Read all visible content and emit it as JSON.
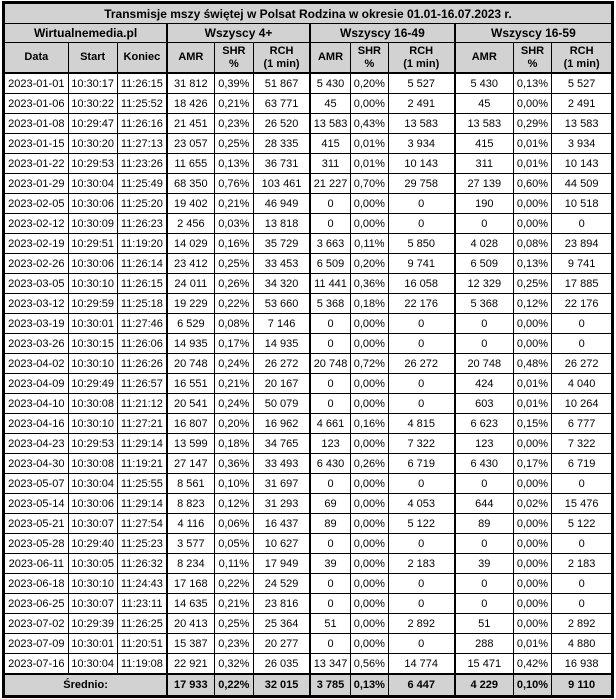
{
  "page": {
    "background": "#ffffff",
    "border_color": "#000000",
    "header_bg": "#d2d2d2"
  },
  "table": {
    "title": "Transmisje mszy świętej w Polsat Rodzina w okresie 01.01-16.07.2023 r.",
    "source": "Wirtualnemedia.pl",
    "groups": [
      "Wszyscy 4+",
      "Wszyscy 16-49",
      "Wszyscy 16-59"
    ],
    "base_columns": [
      "Data",
      "Start",
      "Koniec"
    ],
    "sub_columns": [
      "AMR",
      "SHR %",
      "RCH\n(1 min)"
    ]
  },
  "chart_data": {
    "type": "table",
    "title": "Transmisje mszy świętej w Polsat Rodzina w okresie 01.01-16.07.2023 r.",
    "columns": [
      "Data",
      "Start",
      "Koniec",
      "Wszyscy 4+ AMR",
      "Wszyscy 4+ SHR %",
      "Wszyscy 4+ RCH (1 min)",
      "Wszyscy 16-49 AMR",
      "Wszyscy 16-49 SHR %",
      "Wszyscy 16-49 RCH (1 min)",
      "Wszyscy 16-59 AMR",
      "Wszyscy 16-59 SHR %",
      "Wszyscy 16-59 RCH (1 min)"
    ],
    "rows": [
      [
        "2023-01-01",
        "10:30:17",
        "11:26:15",
        "31 812",
        "0,39%",
        "51 867",
        "5 430",
        "0,20%",
        "5 527",
        "5 430",
        "0,13%",
        "5 527"
      ],
      [
        "2023-01-06",
        "10:30:22",
        "11:25:52",
        "18 426",
        "0,21%",
        "63 771",
        "45",
        "0,00%",
        "2 491",
        "45",
        "0,00%",
        "2 491"
      ],
      [
        "2023-01-08",
        "10:29:47",
        "11:26:16",
        "21 451",
        "0,23%",
        "26 520",
        "13 583",
        "0,43%",
        "13 583",
        "13 583",
        "0,29%",
        "13 583"
      ],
      [
        "2023-01-15",
        "10:30:20",
        "11:27:13",
        "23 057",
        "0,25%",
        "28 335",
        "415",
        "0,01%",
        "3 934",
        "415",
        "0,01%",
        "3 934"
      ],
      [
        "2023-01-22",
        "10:29:53",
        "11:23:26",
        "11 655",
        "0,13%",
        "36 731",
        "311",
        "0,01%",
        "10 143",
        "311",
        "0,01%",
        "10 143"
      ],
      [
        "2023-01-29",
        "10:30:04",
        "11:25:49",
        "68 350",
        "0,76%",
        "103 461",
        "21 227",
        "0,70%",
        "29 758",
        "27 139",
        "0,60%",
        "44 509"
      ],
      [
        "2023-02-05",
        "10:30:06",
        "11:25:20",
        "19 402",
        "0,21%",
        "46 949",
        "0",
        "0,00%",
        "0",
        "190",
        "0,00%",
        "10 518"
      ],
      [
        "2023-02-12",
        "10:30:09",
        "11:26:23",
        "2 456",
        "0,03%",
        "13 818",
        "0",
        "0,00%",
        "0",
        "0",
        "0,00%",
        "0"
      ],
      [
        "2023-02-19",
        "10:29:51",
        "11:19:20",
        "14 029",
        "0,16%",
        "35 729",
        "3 663",
        "0,11%",
        "5 850",
        "4 028",
        "0,08%",
        "23 894"
      ],
      [
        "2023-02-26",
        "10:30:06",
        "11:26:14",
        "23 412",
        "0,25%",
        "33 453",
        "6 509",
        "0,20%",
        "9 741",
        "6 509",
        "0,13%",
        "9 741"
      ],
      [
        "2023-03-05",
        "10:30:10",
        "11:26:15",
        "24 011",
        "0,26%",
        "34 320",
        "11 441",
        "0,36%",
        "16 058",
        "12 329",
        "0,25%",
        "17 885"
      ],
      [
        "2023-03-12",
        "10:29:59",
        "11:25:18",
        "19 229",
        "0,22%",
        "53 660",
        "5 368",
        "0,18%",
        "22 176",
        "5 368",
        "0,12%",
        "22 176"
      ],
      [
        "2023-03-19",
        "10:30:01",
        "11:27:46",
        "6 529",
        "0,08%",
        "7 146",
        "0",
        "0,00%",
        "0",
        "0",
        "0,00%",
        "0"
      ],
      [
        "2023-03-26",
        "10:30:15",
        "11:26:06",
        "14 935",
        "0,17%",
        "14 935",
        "0",
        "0,00%",
        "0",
        "0",
        "0,00%",
        "0"
      ],
      [
        "2023-04-02",
        "10:30:10",
        "11:26:26",
        "20 748",
        "0,24%",
        "26 272",
        "20 748",
        "0,72%",
        "26 272",
        "20 748",
        "0,48%",
        "26 272"
      ],
      [
        "2023-04-09",
        "10:29:49",
        "11:26:57",
        "16 551",
        "0,21%",
        "20 167",
        "0",
        "0,00%",
        "0",
        "424",
        "0,01%",
        "4 040"
      ],
      [
        "2023-04-10",
        "10:30:08",
        "11:21:12",
        "20 541",
        "0,24%",
        "50 079",
        "0",
        "0,00%",
        "0",
        "603",
        "0,01%",
        "10 264"
      ],
      [
        "2023-04-16",
        "10:30:10",
        "11:27:21",
        "16 807",
        "0,20%",
        "16 962",
        "4 661",
        "0,16%",
        "4 815",
        "6 623",
        "0,15%",
        "6 777"
      ],
      [
        "2023-04-23",
        "10:29:53",
        "11:29:14",
        "13 599",
        "0,18%",
        "34 765",
        "123",
        "0,00%",
        "7 322",
        "123",
        "0,00%",
        "7 322"
      ],
      [
        "2023-04-30",
        "10:30:08",
        "11:19:21",
        "27 147",
        "0,36%",
        "33 493",
        "6 430",
        "0,26%",
        "6 719",
        "6 430",
        "0,17%",
        "6 719"
      ],
      [
        "2023-05-07",
        "10:30:04",
        "11:25:55",
        "8 561",
        "0,10%",
        "31 697",
        "0",
        "0,00%",
        "0",
        "0",
        "0,00%",
        "0"
      ],
      [
        "2023-05-14",
        "10:30:06",
        "11:29:14",
        "8 823",
        "0,12%",
        "31 293",
        "69",
        "0,00%",
        "4 053",
        "644",
        "0,02%",
        "15 476"
      ],
      [
        "2023-05-21",
        "10:30:07",
        "11:27:54",
        "4 116",
        "0,06%",
        "16 437",
        "89",
        "0,00%",
        "5 122",
        "89",
        "0,00%",
        "5 122"
      ],
      [
        "2023-05-28",
        "10:29:40",
        "11:25:23",
        "3 577",
        "0,05%",
        "10 627",
        "0",
        "0,00%",
        "0",
        "0",
        "0,00%",
        "0"
      ],
      [
        "2023-06-11",
        "10:30:05",
        "11:26:32",
        "8 234",
        "0,11%",
        "17 949",
        "39",
        "0,00%",
        "2 183",
        "39",
        "0,00%",
        "2 183"
      ],
      [
        "2023-06-18",
        "10:30:10",
        "11:24:43",
        "17 168",
        "0,22%",
        "24 529",
        "0",
        "0,00%",
        "0",
        "0",
        "0,00%",
        "0"
      ],
      [
        "2023-06-25",
        "10:30:07",
        "11:23:11",
        "14 635",
        "0,21%",
        "23 816",
        "0",
        "0,00%",
        "0",
        "0",
        "0,00%",
        "0"
      ],
      [
        "2023-07-02",
        "10:29:39",
        "11:26:25",
        "20 413",
        "0,25%",
        "25 364",
        "51",
        "0,00%",
        "2 892",
        "51",
        "0,00%",
        "2 892"
      ],
      [
        "2023-07-09",
        "10:30:01",
        "11:20:51",
        "15 387",
        "0,23%",
        "20 277",
        "0",
        "0,00%",
        "0",
        "288",
        "0,01%",
        "4 880"
      ],
      [
        "2023-07-16",
        "10:30:04",
        "11:19:08",
        "22 921",
        "0,32%",
        "26 035",
        "13 347",
        "0,56%",
        "14 774",
        "15 471",
        "0,42%",
        "16 938"
      ]
    ],
    "average_label": "Średnio:",
    "average": [
      "17 933",
      "0,22%",
      "32 015",
      "3 785",
      "0,13%",
      "6 447",
      "4 229",
      "0,10%",
      "9 110"
    ]
  }
}
